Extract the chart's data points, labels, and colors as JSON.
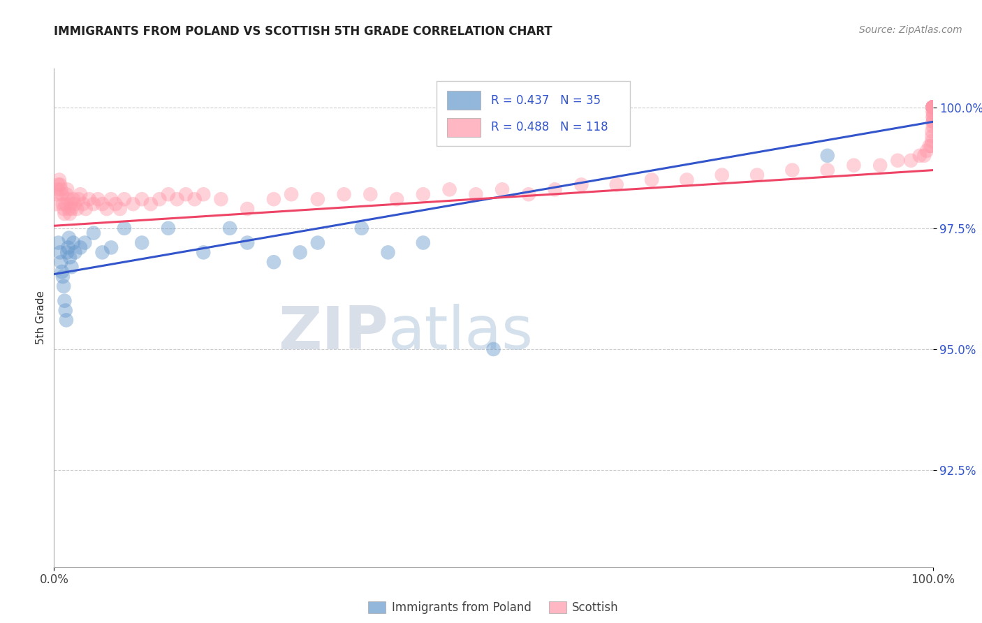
{
  "title": "IMMIGRANTS FROM POLAND VS SCOTTISH 5TH GRADE CORRELATION CHART",
  "source": "Source: ZipAtlas.com",
  "ylabel": "5th Grade",
  "xlim": [
    0.0,
    1.0
  ],
  "ylim": [
    0.905,
    1.008
  ],
  "x_tick_labels": [
    "0.0%",
    "100.0%"
  ],
  "y_tick_labels": [
    "92.5%",
    "95.0%",
    "97.5%",
    "100.0%"
  ],
  "y_ticks": [
    0.925,
    0.95,
    0.975,
    1.0
  ],
  "legend_blue_label": "Immigrants from Poland",
  "legend_pink_label": "Scottish",
  "legend_r_blue": "R = 0.437",
  "legend_n_blue": "N = 35",
  "legend_r_pink": "R = 0.488",
  "legend_n_pink": "N = 118",
  "blue_color": "#6699cc",
  "pink_color": "#ff99aa",
  "blue_line_color": "#3355cc",
  "pink_line_color": "#ee4466",
  "watermark_zip": "ZIP",
  "watermark_atlas": "atlas",
  "blue_line_start_y": 0.9655,
  "blue_line_end_y": 0.997,
  "pink_line_start_y": 0.9755,
  "pink_line_end_y": 0.987,
  "blue_scatter_x": [
    0.005,
    0.007,
    0.008,
    0.009,
    0.01,
    0.011,
    0.012,
    0.013,
    0.014,
    0.015,
    0.016,
    0.017,
    0.018,
    0.02,
    0.022,
    0.024,
    0.03,
    0.035,
    0.045,
    0.055,
    0.065,
    0.08,
    0.1,
    0.13,
    0.17,
    0.2,
    0.22,
    0.25,
    0.28,
    0.3,
    0.35,
    0.38,
    0.42,
    0.5,
    0.88
  ],
  "blue_scatter_y": [
    0.972,
    0.97,
    0.968,
    0.966,
    0.965,
    0.963,
    0.96,
    0.958,
    0.956,
    0.97,
    0.971,
    0.973,
    0.969,
    0.967,
    0.972,
    0.97,
    0.971,
    0.972,
    0.974,
    0.97,
    0.971,
    0.975,
    0.972,
    0.975,
    0.97,
    0.975,
    0.972,
    0.968,
    0.97,
    0.972,
    0.975,
    0.97,
    0.972,
    0.95,
    0.99
  ],
  "pink_scatter_x": [
    0.002,
    0.003,
    0.004,
    0.005,
    0.006,
    0.007,
    0.008,
    0.009,
    0.01,
    0.011,
    0.012,
    0.013,
    0.014,
    0.015,
    0.016,
    0.017,
    0.018,
    0.019,
    0.02,
    0.022,
    0.024,
    0.026,
    0.028,
    0.03,
    0.033,
    0.036,
    0.04,
    0.045,
    0.05,
    0.055,
    0.06,
    0.065,
    0.07,
    0.075,
    0.08,
    0.09,
    0.1,
    0.11,
    0.12,
    0.13,
    0.14,
    0.15,
    0.16,
    0.17,
    0.19,
    0.22,
    0.25,
    0.27,
    0.3,
    0.33,
    0.36,
    0.39,
    0.42,
    0.45,
    0.48,
    0.51,
    0.54,
    0.57,
    0.6,
    0.64,
    0.68,
    0.72,
    0.76,
    0.8,
    0.84,
    0.88,
    0.91,
    0.94,
    0.96,
    0.975,
    0.985,
    0.99,
    0.993,
    0.996,
    0.998,
    0.999,
    0.999,
    0.999,
    1.0,
    1.0,
    1.0,
    1.0,
    1.0,
    1.0,
    1.0,
    1.0,
    1.0,
    1.0,
    1.0,
    1.0,
    1.0,
    1.0,
    1.0,
    1.0,
    1.0,
    1.0,
    1.0,
    1.0,
    1.0,
    1.0,
    1.0,
    1.0,
    1.0,
    1.0,
    1.0,
    1.0,
    1.0,
    1.0,
    1.0,
    1.0,
    1.0,
    1.0,
    1.0,
    1.0,
    1.0
  ],
  "pink_scatter_y": [
    0.98,
    0.982,
    0.983,
    0.984,
    0.985,
    0.984,
    0.983,
    0.982,
    0.98,
    0.979,
    0.978,
    0.98,
    0.982,
    0.983,
    0.981,
    0.979,
    0.978,
    0.98,
    0.979,
    0.981,
    0.98,
    0.979,
    0.981,
    0.982,
    0.98,
    0.979,
    0.981,
    0.98,
    0.981,
    0.98,
    0.979,
    0.981,
    0.98,
    0.979,
    0.981,
    0.98,
    0.981,
    0.98,
    0.981,
    0.982,
    0.981,
    0.982,
    0.981,
    0.982,
    0.981,
    0.979,
    0.981,
    0.982,
    0.981,
    0.982,
    0.982,
    0.981,
    0.982,
    0.983,
    0.982,
    0.983,
    0.982,
    0.983,
    0.984,
    0.984,
    0.985,
    0.985,
    0.986,
    0.986,
    0.987,
    0.987,
    0.988,
    0.988,
    0.989,
    0.989,
    0.99,
    0.99,
    0.991,
    0.992,
    0.992,
    0.993,
    0.994,
    0.995,
    0.996,
    0.997,
    0.997,
    0.998,
    0.998,
    0.999,
    0.999,
    1.0,
    1.0,
    1.0,
    1.0,
    1.0,
    1.0,
    1.0,
    1.0,
    1.0,
    1.0,
    1.0,
    1.0,
    1.0,
    1.0,
    1.0,
    1.0,
    1.0,
    1.0,
    1.0,
    1.0,
    1.0,
    1.0,
    1.0,
    1.0,
    1.0,
    1.0,
    1.0,
    1.0,
    1.0,
    1.0
  ]
}
